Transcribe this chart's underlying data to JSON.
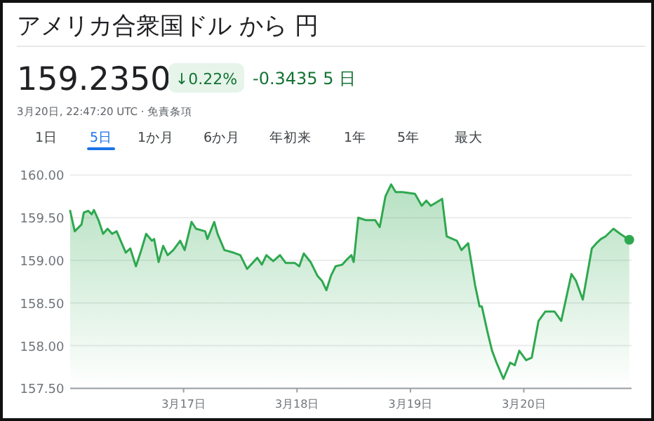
{
  "chart_data": {
    "type": "area",
    "title": "アメリカ合衆国ドル から 円",
    "subtitle": "159.2350",
    "annotations": [
      "↓0.22%",
      "-0.3435 5 日",
      "3月20日, 22:47:20 UTC · 免責条項",
      "1日",
      "5日",
      "1か月",
      "6か月",
      "年初来",
      "1年",
      "5年",
      "最大"
    ],
    "xlim": [
      "--03-16T00:00",
      "--03-20T22:48"
    ],
    "xticks": [
      {
        "value": "--03-17",
        "label": "3月17日"
      },
      {
        "value": "--03-18",
        "label": "3月18日"
      },
      {
        "value": "--03-19",
        "label": "3月19日"
      },
      {
        "value": "--03-20",
        "label": "3月20日"
      }
    ],
    "ylim": [
      157.5,
      160
    ],
    "yticks": [
      {
        "value": 157.5,
        "label": "157.50"
      },
      {
        "value": 158,
        "label": "158.00"
      },
      {
        "value": 158.5,
        "label": "158.50"
      },
      {
        "value": 159,
        "label": "159.00"
      },
      {
        "value": 159.5,
        "label": "159.50"
      },
      {
        "value": 160,
        "label": "160.00"
      }
    ],
    "grid": "y",
    "series": [
      {
        "color": "#2ea84f",
        "x": [
          "--03-16T00:00",
          "--03-16T00:58",
          "--03-16T02:24",
          "--03-16T02:53",
          "--03-16T03:50",
          "--03-16T04:34",
          "--03-16T05:02",
          "--03-16T06:00",
          "--03-16T06:58",
          "--03-16T07:55",
          "--03-16T08:53",
          "--03-16T09:50",
          "--03-16T11:46",
          "--03-16T12:43",
          "--03-16T13:55",
          "--03-16T14:53",
          "--03-16T16:05",
          "--03-16T17:17",
          "--03-16T17:46",
          "--03-16T18:43",
          "--03-16T19:41",
          "--03-16T20:38",
          "--03-16T21:50",
          "--03-16T23:17",
          "--03-17T00:14",
          "--03-17T01:41",
          "--03-17T02:38",
          "--03-17T04:34",
          "--03-17T05:02",
          "--03-17T06:29",
          "--03-17T07:12",
          "--03-17T08:38",
          "--03-17T10:34",
          "--03-17T12:00",
          "--03-17T13:26",
          "--03-17T15:36",
          "--03-17T16:34",
          "--03-17T17:31",
          "--03-17T18:58",
          "--03-17T20:24",
          "--03-17T21:36",
          "--03-17T23:31",
          "--03-18T00:29",
          "--03-18T01:26",
          "--03-18T02:53",
          "--03-18T04:19",
          "--03-18T05:17",
          "--03-18T06:14",
          "--03-18T07:12",
          "--03-18T08:10",
          "--03-18T09:36",
          "--03-18T10:34",
          "--03-18T11:31",
          "--03-18T12:00",
          "--03-18T12:58",
          "--03-18T14:38",
          "--03-18T16:34",
          "--03-18T17:31",
          "--03-18T18:43",
          "--03-18T19:55",
          "--03-18T20:53",
          "--03-18T22:19",
          "--03-19T00:58",
          "--03-19T02:24",
          "--03-19T03:22",
          "--03-19T04:19",
          "--03-19T06:43",
          "--03-19T07:41",
          "--03-19T09:50",
          "--03-19T10:48",
          "--03-19T12:14",
          "--03-19T13:41",
          "--03-19T14:38",
          "--03-19T15:07",
          "--03-19T16:19",
          "--03-19T17:17",
          "--03-19T18:14",
          "--03-19T19:41",
          "--03-19T21:07",
          "--03-19T22:05",
          "--03-19T23:02",
          "--03-20T00:29",
          "--03-20T01:41",
          "--03-20T03:07",
          "--03-20T04:34",
          "--03-20T06:29",
          "--03-20T07:55",
          "--03-20T10:05",
          "--03-20T11:02",
          "--03-20T12:29",
          "--03-20T14:24",
          "--03-20T15:22",
          "--03-20T16:19",
          "--03-20T17:17",
          "--03-20T18:58",
          "--03-20T20:24",
          "--03-20T22:19"
        ],
        "values": [
          159.58,
          159.34,
          159.42,
          159.56,
          159.58,
          159.54,
          159.59,
          159.47,
          159.31,
          159.37,
          159.31,
          159.34,
          159.09,
          159.14,
          158.93,
          159.09,
          159.31,
          159.23,
          159.25,
          158.98,
          159.17,
          159.06,
          159.12,
          159.23,
          159.12,
          159.45,
          159.37,
          159.34,
          159.25,
          159.45,
          159.31,
          159.12,
          159.09,
          159.06,
          158.9,
          159.03,
          158.95,
          159.06,
          158.99,
          159.06,
          158.97,
          158.97,
          158.93,
          159.08,
          158.98,
          158.82,
          158.76,
          158.65,
          158.82,
          158.93,
          158.95,
          159.01,
          159.06,
          158.98,
          159.5,
          159.47,
          159.47,
          159.39,
          159.75,
          159.89,
          159.8,
          159.8,
          159.78,
          159.64,
          159.7,
          159.64,
          159.72,
          159.28,
          159.23,
          159.12,
          159.2,
          158.71,
          158.46,
          158.46,
          158.16,
          157.94,
          157.8,
          157.61,
          157.8,
          157.77,
          157.94,
          157.83,
          157.86,
          158.29,
          158.4,
          158.4,
          158.29,
          158.84,
          158.76,
          158.54,
          159.14,
          159.2,
          159.25,
          159.28,
          159.37,
          159.31,
          159.24
        ]
      }
    ]
  }
}
